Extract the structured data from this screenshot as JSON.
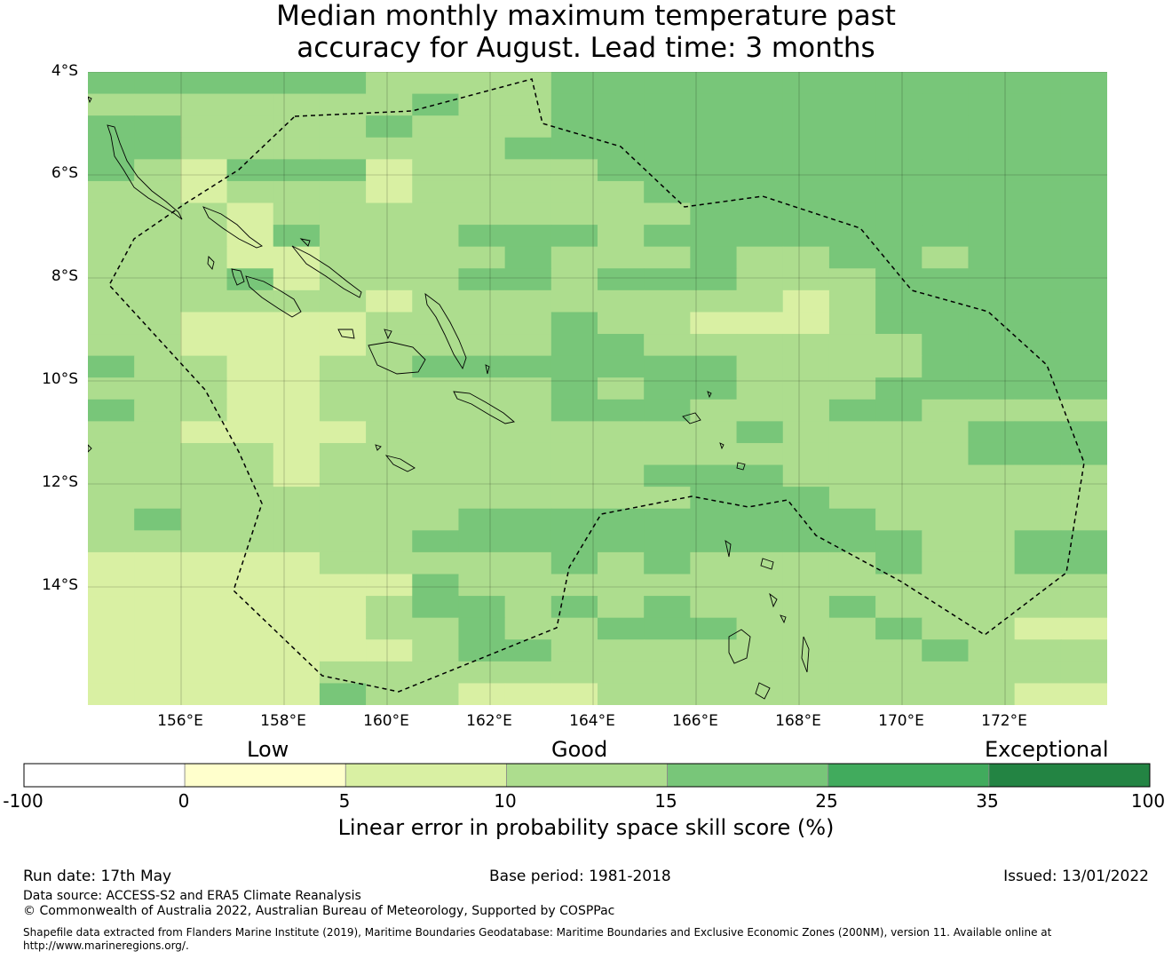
{
  "title": {
    "line1": "Median monthly maximum temperature past",
    "line2": "accuracy for August. Lead time: 3 months"
  },
  "map": {
    "lat_labels": [
      "4°S",
      "6°S",
      "8°S",
      "10°S",
      "12°S",
      "14°S"
    ],
    "lon_labels": [
      "156°E",
      "158°E",
      "160°E",
      "162°E",
      "164°E",
      "166°E",
      "168°E",
      "170°E",
      "172°E"
    ],
    "lon_range": [
      154.2,
      174.0
    ],
    "lat_range": [
      -16.3,
      -4.0
    ],
    "grid_step_deg": 0.8333,
    "eez_boundary": "dashed black line",
    "coastlines": "thin black line",
    "cell_classes": [
      "4444443333444444444444",
      "3333333433444444444444",
      "4433334333444444444444",
      "4433333334444444444444",
      "4324442333344444444444",
      "3323332333334444444444",
      "3332333333333444444444",
      "3332433344434444444444",
      "3332233334333433443444",
      "3334233344344433344444",
      "3333332333333332344444",
      "3322223333433222344444",
      "3322223333443333334444",
      "4332233444444433334444",
      "3332233333434433344444",
      "4332233333444333443333",
      "3322223333333343333444",
      "3333233333333333333444",
      "3333233333334443333333",
      "3333333333333444333333",
      "3433333344444444433333",
      "3333333444444444443344",
      "2222233333434333343344",
      "2222222433333333333333",
      "2222223443434333433333",
      "2222223343344433343322",
      "2222222344333333334333",
      "2222233333333333333333",
      "2222243322233333333322"
    ]
  },
  "colorbar": {
    "categories": [
      "Low",
      "Good",
      "Exceptional"
    ],
    "ticks": [
      "-100",
      "0",
      "5",
      "10",
      "15",
      "25",
      "35",
      "100"
    ],
    "colors": [
      "#ffffff",
      "#ffffcc",
      "#d9f0a3",
      "#addd8e",
      "#78c679",
      "#41ab5d",
      "#238443"
    ],
    "label": "Linear error in probability space skill score (%)"
  },
  "footer": {
    "run_date": "Run date: 17th May",
    "base_period": "Base period: 1981-2018",
    "issued": "Issued: 13/01/2022",
    "data_source": "Data source: ACCESS-S2 and ERA5 Climate Reanalysis",
    "copyright": "© Commonwealth of Australia 2022, Australian Bureau of Meteorology, Supported by COSPPac",
    "shapefile_line1": "Shapefile data extracted from Flanders Marine Institute (2019), Maritime Boundaries Geodatabase: Maritime Boundaries and Exclusive Economic Zones (200NM), version 11. Available online at",
    "shapefile_line2": "http://www.marineregions.org/."
  }
}
